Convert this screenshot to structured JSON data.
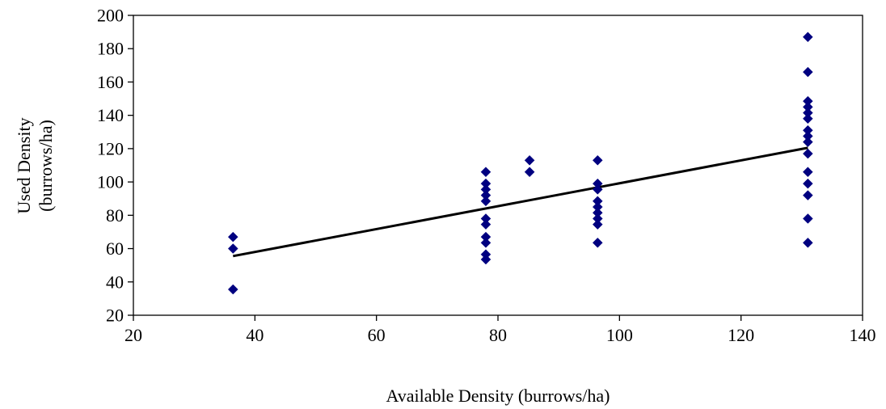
{
  "chart_data": {
    "type": "scatter",
    "title": "",
    "xlabel": "Available Density (burrows/ha)",
    "ylabel_lines": [
      "Used Density",
      "(burrows/ha)"
    ],
    "xlim": [
      20,
      140
    ],
    "ylim": [
      20,
      200
    ],
    "xticks": [
      20,
      40,
      60,
      80,
      100,
      120,
      140
    ],
    "yticks": [
      20,
      40,
      60,
      80,
      100,
      120,
      140,
      160,
      180,
      200
    ],
    "grid": false,
    "legend": "none",
    "marker": "diamond",
    "colors": {
      "marker": "#000080",
      "trendline": "#000000",
      "axes": "#000000"
    },
    "series": [
      {
        "points": [
          [
            36.4,
            35.5
          ],
          [
            36.4,
            60.0
          ],
          [
            36.4,
            67.0
          ],
          [
            78.0,
            53.5
          ],
          [
            78.0,
            56.5
          ],
          [
            78.0,
            63.5
          ],
          [
            78.0,
            67.0
          ],
          [
            78.0,
            74.5
          ],
          [
            78.0,
            78.0
          ],
          [
            78.0,
            88.5
          ],
          [
            78.0,
            92.0
          ],
          [
            78.0,
            95.5
          ],
          [
            78.0,
            99.0
          ],
          [
            78.0,
            106.0
          ],
          [
            85.2,
            106.0
          ],
          [
            85.2,
            113.0
          ],
          [
            96.4,
            63.5
          ],
          [
            96.4,
            74.5
          ],
          [
            96.4,
            78.0
          ],
          [
            96.4,
            81.5
          ],
          [
            96.4,
            85.0
          ],
          [
            96.4,
            88.5
          ],
          [
            96.4,
            95.5
          ],
          [
            96.4,
            99.0
          ],
          [
            96.4,
            113.0
          ],
          [
            131.0,
            63.5
          ],
          [
            131.0,
            78.0
          ],
          [
            131.0,
            92.0
          ],
          [
            131.0,
            99.0
          ],
          [
            131.0,
            106.0
          ],
          [
            131.0,
            117.0
          ],
          [
            131.0,
            124.0
          ],
          [
            131.0,
            127.5
          ],
          [
            131.0,
            131.0
          ],
          [
            131.0,
            138.0
          ],
          [
            131.0,
            141.5
          ],
          [
            131.0,
            145.0
          ],
          [
            131.0,
            148.5
          ],
          [
            131.0,
            166.0
          ],
          [
            131.0,
            187.0
          ]
        ]
      }
    ],
    "trendline": {
      "type": "linear",
      "x": [
        36.4,
        131.0
      ],
      "y": [
        55.5,
        120.5
      ]
    }
  }
}
